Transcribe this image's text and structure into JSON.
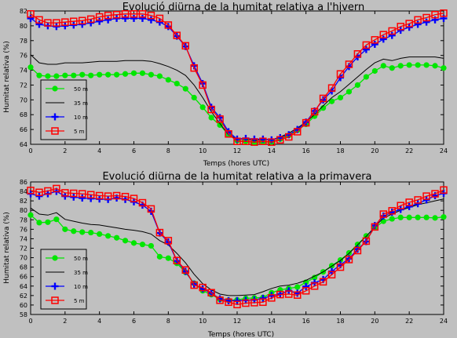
{
  "chart_data": [
    {
      "type": "line",
      "title": "Evolució diürna de la humitat relativa a l'hivern",
      "xlabel": "Temps (hores UTC)",
      "ylabel": "Humitat relativa (%)",
      "xlim": [
        0,
        24
      ],
      "ylim": [
        64,
        82
      ],
      "xticks": [
        0,
        2,
        4,
        6,
        8,
        10,
        12,
        14,
        16,
        18,
        20,
        22,
        24
      ],
      "yticks": [
        64,
        66,
        68,
        70,
        72,
        74,
        76,
        78,
        80,
        82
      ],
      "grid": false,
      "legend_position": "bottom-left",
      "x": [
        0,
        0.5,
        1,
        1.5,
        2,
        2.5,
        3,
        3.5,
        4,
        4.5,
        5,
        5.5,
        6,
        6.5,
        7,
        7.5,
        8,
        8.5,
        9,
        9.5,
        10,
        10.5,
        11,
        11.5,
        12,
        12.5,
        13,
        13.5,
        14,
        14.5,
        15,
        15.5,
        16,
        16.5,
        17,
        17.5,
        18,
        18.5,
        19,
        19.5,
        20,
        20.5,
        21,
        21.5,
        22,
        22.5,
        23,
        23.5,
        24
      ],
      "series": [
        {
          "name": "50 m",
          "color": "#00e600",
          "marker": "circle",
          "values": [
            74.4,
            73.3,
            73.2,
            73.2,
            73.3,
            73.3,
            73.4,
            73.3,
            73.4,
            73.4,
            73.4,
            73.5,
            73.6,
            73.6,
            73.4,
            73.2,
            72.7,
            72.2,
            71.5,
            70.3,
            69.0,
            67.6,
            66.6,
            65.3,
            64.5,
            64.4,
            64.2,
            64.3,
            64.3,
            64.7,
            65.2,
            65.9,
            66.7,
            67.8,
            68.9,
            69.8,
            70.3,
            71.1,
            72.0,
            73.1,
            73.9,
            74.6,
            74.3,
            74.6,
            74.7,
            74.7,
            74.7,
            74.6,
            74.3
          ]
        },
        {
          "name": "35 m",
          "color": "#000000",
          "marker": "none",
          "values": [
            76.1,
            75.0,
            74.8,
            74.8,
            75.0,
            75.0,
            75.0,
            75.1,
            75.2,
            75.2,
            75.2,
            75.3,
            75.3,
            75.3,
            75.2,
            74.9,
            74.5,
            74.0,
            73.3,
            72.0,
            70.3,
            68.4,
            66.8,
            65.3,
            64.7,
            64.7,
            64.5,
            64.6,
            64.6,
            65.0,
            65.5,
            66.2,
            67.0,
            68.0,
            69.2,
            70.3,
            71.1,
            72.1,
            73.1,
            74.1,
            75.0,
            75.5,
            75.3,
            75.6,
            75.8,
            75.8,
            75.8,
            75.8,
            75.6
          ]
        },
        {
          "name": "10 m",
          "color": "#0000ff",
          "marker": "plus",
          "values": [
            81.0,
            80.2,
            80.0,
            79.9,
            80.0,
            80.1,
            80.2,
            80.4,
            80.6,
            80.8,
            81.0,
            81.0,
            81.0,
            81.0,
            80.8,
            80.5,
            79.9,
            78.6,
            77.2,
            74.6,
            72.2,
            69.0,
            67.6,
            65.7,
            64.7,
            64.8,
            64.7,
            64.7,
            64.6,
            64.9,
            65.3,
            66.0,
            67.0,
            68.5,
            70.0,
            71.2,
            73.0,
            74.5,
            75.8,
            76.8,
            77.5,
            78.2,
            78.7,
            79.4,
            79.8,
            80.2,
            80.5,
            80.8,
            81.0
          ]
        },
        {
          "name": "5 m",
          "color": "#ff0000",
          "marker": "square",
          "values": [
            81.6,
            80.8,
            80.4,
            80.4,
            80.5,
            80.6,
            80.7,
            80.9,
            81.2,
            81.4,
            81.5,
            81.6,
            81.6,
            81.6,
            81.4,
            81.0,
            80.1,
            78.7,
            77.3,
            74.3,
            72.0,
            68.7,
            67.4,
            65.4,
            64.4,
            64.4,
            64.3,
            64.4,
            64.3,
            64.6,
            65.0,
            65.7,
            66.9,
            68.4,
            70.2,
            71.6,
            73.5,
            74.8,
            76.2,
            77.4,
            78.1,
            78.8,
            79.3,
            79.9,
            80.3,
            80.8,
            81.1,
            81.5,
            81.7
          ]
        }
      ]
    },
    {
      "type": "line",
      "title": "Evolució diürna de la humitat relativa a la primavera",
      "xlabel": "Temps (hores UTC)",
      "ylabel": "Humitat relativa (%)",
      "xlim": [
        0,
        24
      ],
      "ylim": [
        58,
        86
      ],
      "xticks": [
        0,
        2,
        4,
        6,
        8,
        10,
        12,
        14,
        16,
        18,
        20,
        22,
        24
      ],
      "yticks": [
        58,
        60,
        62,
        64,
        66,
        68,
        70,
        72,
        74,
        76,
        78,
        80,
        82,
        84,
        86
      ],
      "grid": false,
      "legend_position": "bottom-left",
      "x": [
        0,
        0.5,
        1,
        1.5,
        2,
        2.5,
        3,
        3.5,
        4,
        4.5,
        5,
        5.5,
        6,
        6.5,
        7,
        7.5,
        8,
        8.5,
        9,
        9.5,
        10,
        10.5,
        11,
        11.5,
        12,
        12.5,
        13,
        13.5,
        14,
        14.5,
        15,
        15.5,
        16,
        16.5,
        17,
        17.5,
        18,
        18.5,
        19,
        19.5,
        20,
        20.5,
        21,
        21.5,
        22,
        22.5,
        23,
        23.5,
        24
      ],
      "series": [
        {
          "name": "50 m",
          "color": "#00e600",
          "marker": "circle",
          "values": [
            79.0,
            77.4,
            77.5,
            78.1,
            76.0,
            75.6,
            75.4,
            75.3,
            75.0,
            74.6,
            74.2,
            73.6,
            73.1,
            72.8,
            72.5,
            70.2,
            69.9,
            68.8,
            66.9,
            64.6,
            63.0,
            62.2,
            61.2,
            61.0,
            61.1,
            61.4,
            61.5,
            61.6,
            62.6,
            63.2,
            63.5,
            63.8,
            64.8,
            65.8,
            67.0,
            68.3,
            69.5,
            71.0,
            72.8,
            74.6,
            76.3,
            77.7,
            78.2,
            78.5,
            78.5,
            78.5,
            78.5,
            78.4,
            78.6
          ]
        },
        {
          "name": "35 m",
          "color": "#000000",
          "marker": "none",
          "values": [
            80.5,
            79.2,
            79.0,
            79.5,
            78.1,
            77.7,
            77.3,
            77.0,
            76.9,
            76.6,
            76.3,
            76.0,
            75.8,
            75.5,
            75.0,
            73.6,
            72.7,
            70.9,
            68.9,
            66.5,
            64.5,
            63.2,
            62.3,
            62.0,
            62.0,
            62.1,
            62.2,
            62.8,
            63.5,
            64.0,
            64.2,
            64.6,
            65.2,
            66.1,
            67.0,
            68.2,
            69.4,
            70.9,
            72.7,
            74.5,
            76.5,
            78.4,
            79.2,
            80.0,
            80.6,
            81.2,
            81.6,
            82.0,
            82.4
          ]
        },
        {
          "name": "10 m",
          "color": "#0000ff",
          "marker": "plus",
          "values": [
            83.5,
            83.0,
            83.5,
            84.0,
            83.0,
            82.8,
            82.6,
            82.5,
            82.4,
            82.3,
            82.6,
            82.3,
            81.8,
            81.1,
            79.8,
            75.2,
            73.3,
            69.3,
            67.1,
            64.4,
            63.4,
            62.5,
            61.3,
            60.9,
            60.9,
            61.0,
            61.1,
            61.4,
            62.0,
            62.3,
            63.0,
            62.5,
            63.9,
            64.7,
            65.4,
            67.1,
            68.5,
            69.8,
            71.8,
            73.4,
            76.8,
            78.8,
            79.6,
            80.2,
            80.8,
            81.4,
            82.2,
            83.1,
            83.6
          ]
        },
        {
          "name": "5 m",
          "color": "#ff0000",
          "marker": "square",
          "values": [
            84.2,
            83.8,
            84.1,
            84.6,
            83.7,
            83.6,
            83.5,
            83.3,
            83.1,
            83.0,
            83.1,
            82.9,
            82.5,
            81.6,
            80.3,
            75.3,
            73.6,
            69.4,
            67.4,
            64.2,
            63.7,
            62.6,
            61.0,
            60.6,
            60.1,
            60.4,
            60.5,
            60.6,
            61.5,
            62.2,
            62.3,
            62.1,
            63.0,
            64.0,
            64.9,
            66.4,
            68.0,
            69.6,
            71.5,
            73.5,
            76.5,
            79.2,
            79.9,
            81.0,
            81.7,
            82.2,
            83.0,
            83.5,
            84.3
          ]
        }
      ]
    }
  ]
}
